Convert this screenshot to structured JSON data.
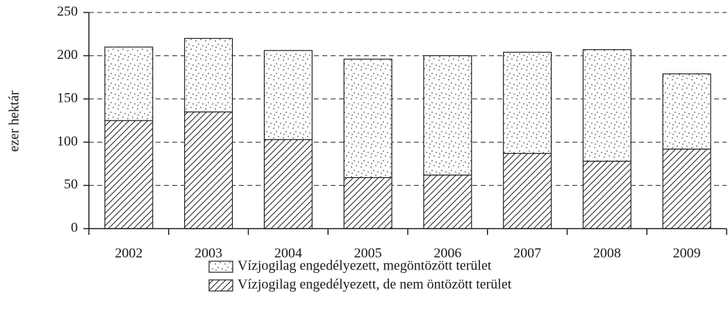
{
  "chart_data": {
    "type": "stacked_bar",
    "y_label": "ezer hektár",
    "categories": [
      "2002",
      "2003",
      "2004",
      "2005",
      "2006",
      "2007",
      "2008",
      "2009"
    ],
    "series": [
      {
        "name": "Vízjogilag engedélyezett, de nem öntözött terület",
        "color": "#1a1a1a",
        "pattern": "hatch",
        "values": [
          125,
          135,
          103,
          59,
          62,
          87,
          78,
          92
        ]
      },
      {
        "name": "Vízjogilag engedélyezett, megöntözött terület",
        "color": "#1a1a1a",
        "pattern": "dots",
        "values": [
          85,
          85,
          103,
          137,
          138,
          117,
          129,
          87
        ]
      }
    ],
    "ylim": [
      0,
      250
    ],
    "yticks": [
      0,
      50,
      100,
      150,
      200,
      250
    ],
    "grid": true
  }
}
